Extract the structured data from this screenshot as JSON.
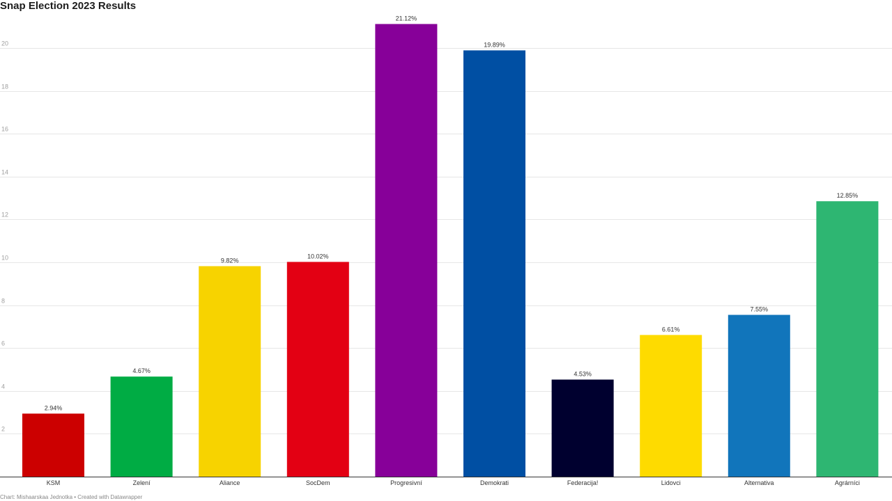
{
  "chart_data": {
    "type": "bar",
    "title": "Snap Election 2023 Results",
    "categories": [
      "KSM",
      "Zelení",
      "Aliance",
      "SocDem",
      "Progresivní",
      "Demokrati",
      "Federacija!",
      "Lidovci",
      "Alternativa",
      "Agrárníci"
    ],
    "values": [
      2.94,
      4.67,
      9.82,
      10.02,
      21.12,
      19.89,
      4.53,
      6.61,
      7.55,
      12.85
    ],
    "value_labels": [
      "2.94%",
      "4.67%",
      "9.82%",
      "10.02%",
      "21.12%",
      "19.89%",
      "4.53%",
      "6.61%",
      "7.55%",
      "12.85%"
    ],
    "colors": [
      "#cc0000",
      "#00ac44",
      "#f7d300",
      "#e30013",
      "#870099",
      "#004fa3",
      "#00002f",
      "#fedb00",
      "#1175bb",
      "#2eb672"
    ],
    "y_ticks": [
      2,
      4,
      6,
      8,
      10,
      12,
      14,
      16,
      18,
      20
    ],
    "ylim": [
      0,
      21.5
    ],
    "grid": true,
    "xlabel": "",
    "ylabel": ""
  },
  "footer": {
    "text": "Chart: Mishaarskaa Jednotka • Created with Datawrapper"
  }
}
